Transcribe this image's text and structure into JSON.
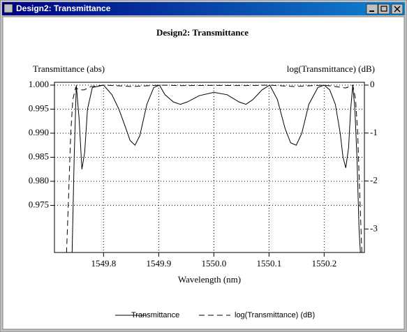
{
  "window": {
    "title": "Design2: Transmittance"
  },
  "chart_data": {
    "type": "line",
    "title": "Design2: Transmittance",
    "x_label": "Wavelength (nm)",
    "y_label": "Transmittance (abs)",
    "y2_label": "log(Transmittance) (dB)",
    "xlim": [
      1549.711,
      1550.273
    ],
    "ylim": [
      0.9652,
      1.0
    ],
    "y2lim": [
      -3.49,
      0
    ],
    "xticks": [
      1549.8,
      1549.9,
      {
        "value": 1550,
        "label": "1550.0"
      },
      1550.1,
      1550.2
    ],
    "yticks": [
      {
        "value": 0.975,
        "label": "0.975"
      },
      {
        "value": 0.98,
        "label": "0.980"
      },
      {
        "value": 0.985,
        "label": "0.985"
      },
      {
        "value": 0.99,
        "label": "0.990"
      },
      {
        "value": 0.995,
        "label": "0.995"
      },
      {
        "value": 1,
        "label": "1.000"
      }
    ],
    "y2ticks": [
      -3,
      -2,
      -1,
      0
    ],
    "grid": true,
    "legend": "bottom",
    "series": [
      {
        "name": "Transmittance",
        "color": "#000000",
        "dash": "solid",
        "x": [
          1549.743,
          1549.7468,
          1549.7506,
          1549.7557,
          1549.7608,
          1549.7658,
          1549.7709,
          1549.7797,
          1549.8,
          1549.8152,
          1549.8278,
          1549.8405,
          1549.8481,
          1549.857,
          1549.8658,
          1549.8785,
          1549.8911,
          1549.9013,
          1549.9114,
          1549.9266,
          1549.9392,
          1549.9519,
          1549.9734,
          1550.0,
          1550.0241,
          1550.0456,
          1550.0582,
          1550.0709,
          1550.0873,
          1550.1013,
          1550.1152,
          1550.1291,
          1550.1392,
          1550.1494,
          1550.1595,
          1550.1722,
          1550.1886,
          1550.2,
          1550.2101,
          1550.2203,
          1550.2291,
          1550.2342,
          1550.2392,
          1550.2443,
          1550.2481,
          1550.2519,
          1550.2557,
          1550.2595,
          1550.2633,
          1550.2658
        ],
        "values": [
          0.965,
          0.985,
          1.0,
          0.993,
          0.9825,
          0.986,
          0.995,
          0.9995,
          1.0,
          0.998,
          0.995,
          0.991,
          0.9885,
          0.9875,
          0.9895,
          0.996,
          0.9995,
          1.0,
          0.998,
          0.9965,
          0.996,
          0.9965,
          0.9978,
          0.9985,
          0.998,
          0.9965,
          0.996,
          0.997,
          0.999,
          1.0,
          0.997,
          0.991,
          0.988,
          0.9875,
          0.99,
          0.996,
          0.9995,
          1.0,
          0.999,
          0.996,
          0.99,
          0.985,
          0.9828,
          0.987,
          0.995,
          1.0,
          0.995,
          0.985,
          0.97,
          0.965
        ]
      },
      {
        "name": "log(Transmittance) (dB)",
        "color": "#000000",
        "dash": "dashed",
        "axis": "y2",
        "x": [
          1549.7329,
          1549.7367,
          1549.7405,
          1549.7443,
          1549.7494,
          1549.7557,
          1549.7646,
          1549.7772,
          1549.8,
          1549.8532,
          1549.9013,
          1549.9418,
          1550.0,
          1550.0557,
          1550.1013,
          1550.1443,
          1550.2,
          1550.2392,
          1550.2519,
          1550.257,
          1550.2608,
          1550.2646,
          1550.2684
        ],
        "values": [
          -3.5,
          -2.3,
          -1.0,
          -0.3,
          -0.05,
          -0.1,
          -0.1,
          -0.03,
          0,
          -0.03,
          0,
          -0.01,
          -0.005,
          -0.01,
          0,
          -0.03,
          0,
          -0.06,
          0,
          -0.3,
          -1.0,
          -2.3,
          -3.5
        ]
      }
    ]
  }
}
